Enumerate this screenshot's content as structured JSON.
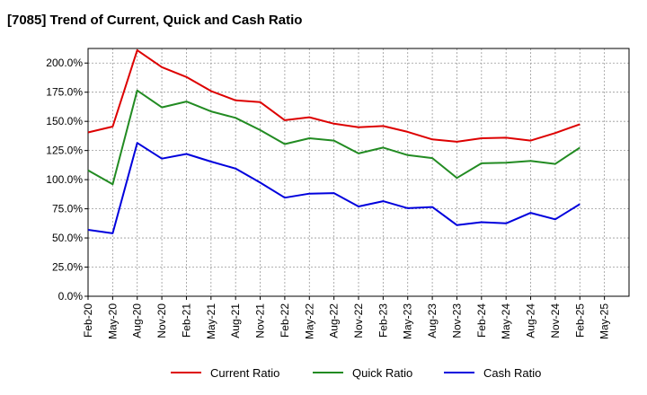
{
  "chart_data": {
    "type": "line",
    "title": "[7085]  Trend of Current, Quick and Cash Ratio",
    "xlabel": "",
    "ylabel": "",
    "ylim": [
      0,
      212.5
    ],
    "yticks": [
      "0.0%",
      "25.0%",
      "50.0%",
      "75.0%",
      "100.0%",
      "125.0%",
      "150.0%",
      "175.0%",
      "200.0%"
    ],
    "ytick_values": [
      0,
      25,
      50,
      75,
      100,
      125,
      150,
      175,
      200
    ],
    "xticks": [
      "Feb-20",
      "May-20",
      "Aug-20",
      "Nov-20",
      "Feb-21",
      "May-21",
      "Aug-21",
      "Nov-21",
      "Feb-22",
      "May-22",
      "Aug-22",
      "Nov-22",
      "Feb-23",
      "May-23",
      "Aug-23",
      "Nov-23",
      "Feb-24",
      "May-24",
      "Aug-24",
      "Nov-24",
      "Feb-25",
      "May-25"
    ],
    "grid": true,
    "legend_position": "bottom",
    "series": [
      {
        "name": "Current Ratio",
        "color": "#dd0000",
        "values": [
          140.5,
          145.5,
          211,
          196.5,
          188,
          176,
          168,
          166.5,
          151,
          153.5,
          148,
          145,
          146,
          141,
          134.5,
          132.5,
          135.5,
          136,
          133.5,
          140,
          147.5
        ]
      },
      {
        "name": "Quick Ratio",
        "color": "#228b22",
        "values": [
          108,
          96,
          176.5,
          162,
          167,
          158.5,
          153,
          142.5,
          130.5,
          135.5,
          133.5,
          122.5,
          127.5,
          121,
          118.5,
          101.5,
          114,
          114.5,
          116,
          113.5,
          127.5
        ]
      },
      {
        "name": "Cash Ratio",
        "color": "#0000dd",
        "values": [
          57,
          54,
          131.5,
          118,
          122,
          115.5,
          109.5,
          97.5,
          84.5,
          88,
          88.5,
          77,
          81.5,
          75.5,
          76.5,
          61,
          63.5,
          62.5,
          71.5,
          66,
          79
        ]
      }
    ]
  }
}
